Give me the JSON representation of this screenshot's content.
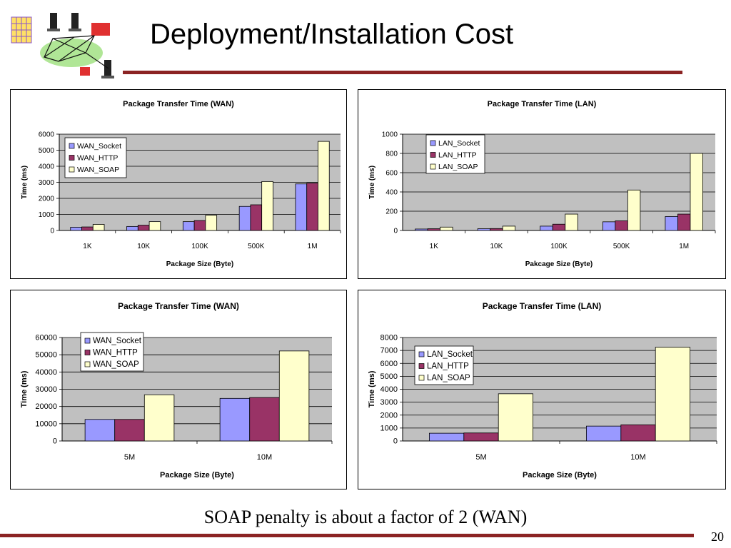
{
  "slide": {
    "title": "Deployment/Installation Cost",
    "caption": "SOAP penalty is about a factor of 2 (WAN)",
    "page_number": "20"
  },
  "colors": {
    "socket": "#9999ff",
    "http": "#993366",
    "soap": "#ffffcc",
    "plot_bg": "#c0c0c0",
    "rule": "#8b2323"
  },
  "chart_data": [
    {
      "type": "bar",
      "title": "Package Transfer Time (WAN)",
      "xlabel": "Package Size (Byte)",
      "ylabel": "Time (ms)",
      "categories": [
        "1K",
        "10K",
        "100K",
        "500K",
        "1M"
      ],
      "ylim": [
        0,
        6000
      ],
      "yticks": [
        0,
        1000,
        2000,
        3000,
        4000,
        5000,
        6000
      ],
      "legend_position": "top-left",
      "grid": true,
      "series": [
        {
          "name": "WAN_Socket",
          "values": [
            200,
            250,
            550,
            1500,
            2900
          ]
        },
        {
          "name": "WAN_HTTP",
          "values": [
            220,
            330,
            620,
            1600,
            2950
          ]
        },
        {
          "name": "WAN_SOAP",
          "values": [
            380,
            550,
            950,
            3050,
            5550
          ]
        }
      ]
    },
    {
      "type": "bar",
      "title": "Package Transfer Time (LAN)",
      "xlabel": "Pakcage Size (Byte)",
      "ylabel": "Time (ms)",
      "categories": [
        "1K",
        "10K",
        "100K",
        "500K",
        "1M"
      ],
      "ylim": [
        0,
        1000
      ],
      "yticks": [
        0,
        200,
        400,
        600,
        800,
        1000
      ],
      "legend_position": "top-left",
      "grid": true,
      "series": [
        {
          "name": "LAN_Socket",
          "values": [
            15,
            18,
            45,
            90,
            145
          ]
        },
        {
          "name": "LAN_HTTP",
          "values": [
            18,
            20,
            65,
            100,
            170
          ]
        },
        {
          "name": "LAN_SOAP",
          "values": [
            35,
            45,
            170,
            420,
            800
          ]
        }
      ]
    },
    {
      "type": "bar",
      "title": "Package Transfer Time (WAN)",
      "xlabel": "Package Size (Byte)",
      "ylabel": "Time (ms)",
      "categories": [
        "5M",
        "10M"
      ],
      "ylim": [
        0,
        60000
      ],
      "yticks": [
        0,
        10000,
        20000,
        30000,
        40000,
        50000,
        60000
      ],
      "legend_position": "top-left",
      "grid": true,
      "series": [
        {
          "name": "WAN_Socket",
          "values": [
            12500,
            24700
          ]
        },
        {
          "name": "WAN_HTTP",
          "values": [
            12500,
            25200
          ]
        },
        {
          "name": "WAN_SOAP",
          "values": [
            26800,
            52200
          ]
        }
      ]
    },
    {
      "type": "bar",
      "title": "Package Transfer Time (LAN)",
      "xlabel": "Package Size (Byte)",
      "ylabel": "Time (ms)",
      "categories": [
        "5M",
        "10M"
      ],
      "ylim": [
        0,
        8000
      ],
      "yticks": [
        0,
        1000,
        2000,
        3000,
        4000,
        5000,
        6000,
        7000,
        8000
      ],
      "legend_position": "top-left",
      "grid": true,
      "series": [
        {
          "name": "LAN_Socket",
          "values": [
            600,
            1150
          ]
        },
        {
          "name": "LAN_HTTP",
          "values": [
            620,
            1250
          ]
        },
        {
          "name": "LAN_SOAP",
          "values": [
            3650,
            7250
          ]
        }
      ]
    }
  ]
}
